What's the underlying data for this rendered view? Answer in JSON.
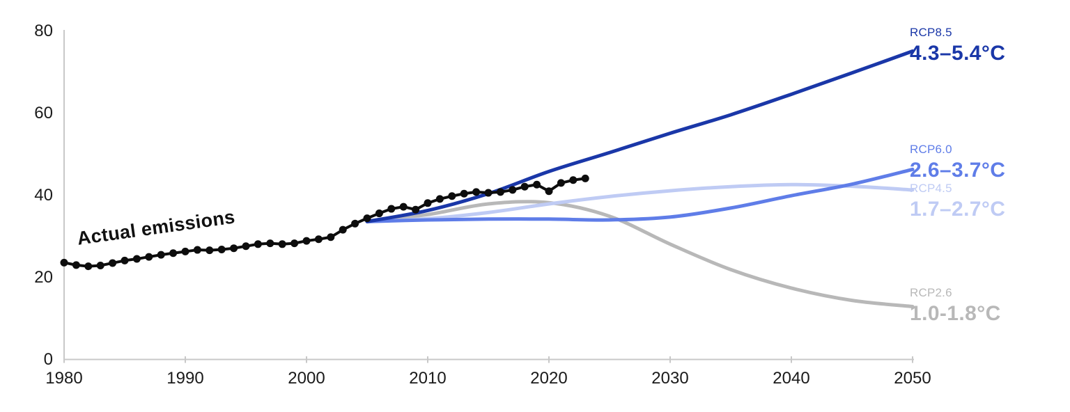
{
  "chart_data": {
    "type": "line",
    "title": "",
    "xlabel": "",
    "ylabel": "",
    "xlim": [
      1980,
      2050
    ],
    "ylim": [
      0,
      80
    ],
    "grid": false,
    "legend_position": "right-edge-labels",
    "x_ticks": [
      1980,
      1990,
      2000,
      2010,
      2020,
      2030,
      2040,
      2050
    ],
    "y_ticks": [
      0,
      20,
      40,
      60,
      80
    ],
    "axis_color": "#c8c8c8",
    "tick_label_color": "#1a1a1a",
    "annotation": {
      "text": "Actual emissions"
    },
    "actual": {
      "name": "Actual emissions",
      "color": "#0d0d0d",
      "years": [
        1980,
        1981,
        1982,
        1983,
        1984,
        1985,
        1986,
        1987,
        1988,
        1989,
        1990,
        1991,
        1992,
        1993,
        1994,
        1995,
        1996,
        1997,
        1998,
        1999,
        2000,
        2001,
        2002,
        2003,
        2004,
        2005,
        2006,
        2007,
        2008,
        2009,
        2010,
        2011,
        2012,
        2013,
        2014,
        2015,
        2016,
        2017,
        2018,
        2019,
        2020,
        2021,
        2022,
        2023
      ],
      "values": [
        23.5,
        22.9,
        22.6,
        22.8,
        23.4,
        24.0,
        24.4,
        24.9,
        25.4,
        25.8,
        26.2,
        26.6,
        26.5,
        26.7,
        27.0,
        27.5,
        28.0,
        28.2,
        28.0,
        28.2,
        28.8,
        29.2,
        29.7,
        31.5,
        33.0,
        34.3,
        35.5,
        36.6,
        37.1,
        36.4,
        38.0,
        39.0,
        39.7,
        40.3,
        40.7,
        40.5,
        40.7,
        41.2,
        42.0,
        42.5,
        40.9,
        42.9,
        43.6,
        44.0
      ]
    },
    "scenarios": [
      {
        "label": "RCP8.5",
        "range": "4.3–5.4°C",
        "color": "#1a37a8",
        "years": [
          2005,
          2010,
          2015,
          2020,
          2025,
          2030,
          2035,
          2040,
          2045,
          2050
        ],
        "values": [
          33.5,
          36.2,
          40.3,
          45.7,
          50.3,
          55.0,
          59.5,
          64.5,
          69.7,
          75.0
        ]
      },
      {
        "label": "RCP6.0",
        "range": "2.6–3.7°C",
        "color": "#5f7de8",
        "years": [
          2005,
          2010,
          2015,
          2020,
          2025,
          2030,
          2035,
          2040,
          2045,
          2050
        ],
        "values": [
          33.5,
          33.9,
          34.1,
          34.1,
          33.9,
          34.6,
          36.8,
          39.8,
          42.6,
          46.2
        ]
      },
      {
        "label": "RCP4.5",
        "range": "1.7–2.7°C",
        "color": "#bfcbf4",
        "years": [
          2005,
          2010,
          2015,
          2020,
          2025,
          2030,
          2035,
          2040,
          2045,
          2050
        ],
        "values": [
          33.5,
          34.2,
          35.7,
          37.8,
          39.6,
          41.0,
          42.0,
          42.5,
          42.1,
          41.2
        ]
      },
      {
        "label": "RCP2.6",
        "range": "1.0-1.8°C",
        "color": "#b8b8b8",
        "years": [
          2005,
          2010,
          2015,
          2020,
          2025,
          2030,
          2035,
          2040,
          2045,
          2050
        ],
        "values": [
          33.5,
          35.2,
          37.8,
          38.1,
          34.8,
          28.0,
          21.8,
          17.3,
          14.3,
          12.8
        ]
      }
    ]
  }
}
